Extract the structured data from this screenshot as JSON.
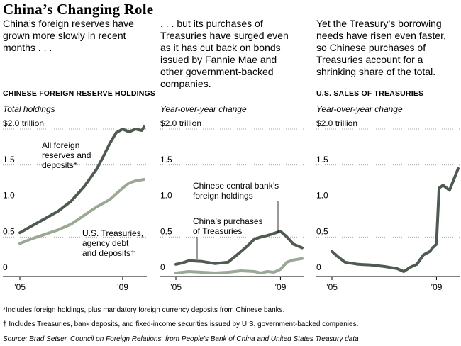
{
  "title": "China’s Changing Role",
  "intros": [
    "China’s foreign reserves have grown more slowly in recent months . . .",
    ". . . but its purchases of Treasuries have surged even as it has cut back on bonds issued by Fannie Mae and other government-backed companies.",
    "Yet the Treasury’s borrowing needs have risen even faster, so Chinese purchases of Treasuries account for a shrinking share of the total."
  ],
  "panel_headers": [
    "CHINESE FOREIGN RESERVE HOLDINGS",
    "",
    "U.S. SALES OF TREASURIES"
  ],
  "panel_subtitles": [
    "Total holdings",
    "Year-over-year change",
    "Year-over-year change"
  ],
  "footnotes": [
    "*Includes foreign holdings, plus mandatory foreign currency deposits from Chinese banks.",
    "† Includes Treasuries, bank deposits, and fixed-income securities issued by U.S. government-backed companies."
  ],
  "source": "Source: Brad Setser, Council on Foreign Relations, from People’s Bank of China and United States Treasury data",
  "colors": {
    "dark_series": "#4f5b50",
    "light_series": "#9aa894",
    "axis": "#000000",
    "grid": "#8a8a8a"
  },
  "chart_data": [
    {
      "type": "line",
      "title": "CHINESE FOREIGN RESERVE HOLDINGS",
      "subtitle": "Total holdings",
      "ylim": [
        0,
        2.0
      ],
      "y_ticks": [
        0,
        0.5,
        1.0,
        1.5,
        2.0
      ],
      "y_tick_labels": [
        "0",
        "0.5",
        "1.0",
        "1.5",
        "$2.0 trillion"
      ],
      "x_range": [
        2005,
        2009.83
      ],
      "x_ticks": [
        2005,
        2009
      ],
      "x_tick_labels": [
        "’05",
        "’09"
      ],
      "series": [
        {
          "name": "All foreign reserves and deposits*",
          "color": "#4f5b50",
          "x": [
            2005,
            2005.5,
            2006,
            2006.5,
            2007,
            2007.5,
            2008,
            2008.25,
            2008.5,
            2008.75,
            2009,
            2009.25,
            2009.5,
            2009.75,
            2009.83
          ],
          "values": [
            0.56,
            0.66,
            0.76,
            0.86,
            1.0,
            1.2,
            1.45,
            1.62,
            1.8,
            1.95,
            2.0,
            1.96,
            2.0,
            1.98,
            2.03
          ]
        },
        {
          "name": "U.S. Treasuries, agency debt and deposits†",
          "color": "#9aa894",
          "x": [
            2005,
            2005.5,
            2006,
            2006.5,
            2007,
            2007.5,
            2008,
            2008.5,
            2009,
            2009.25,
            2009.5,
            2009.83
          ],
          "values": [
            0.41,
            0.48,
            0.54,
            0.6,
            0.68,
            0.8,
            0.92,
            1.02,
            1.18,
            1.25,
            1.28,
            1.3
          ]
        }
      ],
      "annotations": [
        "All foreign reserves and deposits*",
        "U.S. Treasuries, agency debt and deposits†"
      ]
    },
    {
      "type": "line",
      "title": "",
      "subtitle": "Year-over-year change",
      "ylim": [
        0,
        2.0
      ],
      "y_ticks": [
        0,
        0.5,
        1.0,
        1.5,
        2.0
      ],
      "y_tick_labels": [
        "0",
        "0.5",
        "1.0",
        "1.5",
        "$2.0 trillion"
      ],
      "x_range": [
        2005,
        2009.83
      ],
      "x_ticks": [
        2005,
        2009
      ],
      "x_tick_labels": [
        "’05",
        "’09"
      ],
      "series": [
        {
          "name": "Chinese central bank’s foreign holdings",
          "color": "#4f5b50",
          "x": [
            2005,
            2005.25,
            2005.5,
            2006,
            2006.5,
            2007,
            2007.5,
            2007.75,
            2008,
            2008.25,
            2008.5,
            2008.75,
            2009,
            2009.25,
            2009.5,
            2009.83
          ],
          "values": [
            0.12,
            0.14,
            0.17,
            0.16,
            0.13,
            0.15,
            0.3,
            0.38,
            0.47,
            0.5,
            0.52,
            0.55,
            0.58,
            0.5,
            0.4,
            0.35
          ]
        },
        {
          "name": "China’s purchases of Treasuries",
          "color": "#9aa894",
          "x": [
            2005,
            2005.5,
            2006,
            2006.5,
            2007,
            2007.5,
            2008,
            2008.25,
            2008.5,
            2008.75,
            2009,
            2009.25,
            2009.5,
            2009.83
          ],
          "values": [
            0.0,
            0.02,
            0.01,
            0.0,
            0.01,
            0.03,
            0.02,
            0.0,
            0.02,
            0.01,
            0.05,
            0.15,
            0.18,
            0.2
          ]
        }
      ],
      "annotations": [
        "Chinese central bank’s foreign holdings",
        "China’s purchases of Treasuries"
      ]
    },
    {
      "type": "line",
      "title": "U.S. SALES OF TREASURIES",
      "subtitle": "Year-over-year change",
      "ylim": [
        0,
        2.0
      ],
      "y_ticks": [
        0,
        0.5,
        1.0,
        1.5,
        2.0
      ],
      "y_tick_labels": [
        "0",
        "0.5",
        "1.0",
        "1.5",
        "$2.0 trillion"
      ],
      "x_range": [
        2005,
        2009.83
      ],
      "x_ticks": [
        2005,
        2009
      ],
      "x_tick_labels": [
        "’05",
        "’09"
      ],
      "series": [
        {
          "name": "U.S. sales of Treasuries",
          "color": "#4f5b50",
          "x": [
            2005,
            2005.25,
            2005.5,
            2006,
            2006.5,
            2007,
            2007.5,
            2007.75,
            2008,
            2008.25,
            2008.5,
            2008.75,
            2008.85,
            2009,
            2009.1,
            2009.25,
            2009.5,
            2009.83
          ],
          "values": [
            0.3,
            0.22,
            0.15,
            0.12,
            0.11,
            0.09,
            0.06,
            0.02,
            0.08,
            0.12,
            0.25,
            0.3,
            0.35,
            0.4,
            1.18,
            1.22,
            1.15,
            1.45
          ]
        }
      ],
      "annotations": []
    }
  ]
}
